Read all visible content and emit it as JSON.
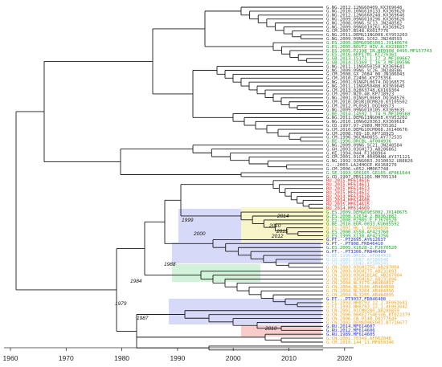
{
  "colors": {
    "black": "#3a3a3a",
    "green": "#14a51f",
    "red": "#e2231a",
    "blue": "#2430d6",
    "orange": "#f0a216",
    "lightblue": "#9fd2f0",
    "band_blue": "#c9ccf5",
    "band_green": "#cdf2d6",
    "band_yellow": "#fbf6c2",
    "band_red": "#f8c6c6"
  },
  "axis": {
    "ticks": [
      "1960",
      "1970",
      "1980",
      "1990",
      "2000",
      "2010",
      "2020"
    ]
  },
  "node_labels": [
    "1999",
    "2000",
    "2010",
    "2014",
    "2012",
    "2015",
    "1988",
    "1984",
    "1979",
    "1987",
    "2010"
  ],
  "tips": [
    {
      "text": "G.NG.2012.12NG60409.KX369648",
      "color": "black"
    },
    {
      "text": "G.NG.2010.10NG610133.KX369620",
      "color": "black"
    },
    {
      "text": "G.NG.2012.12NG660248.KX369646",
      "color": "black"
    },
    {
      "text": "G.NG.2009.09NG010296.KX369626",
      "color": "black"
    },
    {
      "text": "G.NG.2008.09NG.SC13.JN248582",
      "color": "black"
    },
    {
      "text": "G.NG.2009.09NG010261.KX369625",
      "color": "black"
    },
    {
      "text": "G.CM.2007.BS48.KX017776",
      "color": "black"
    },
    {
      "text": "G.NG.2011.DEMG11NG008.KY953203",
      "color": "black"
    },
    {
      "text": "G.NG.2009.09NG.SC62.JN248593",
      "color": "black"
    },
    {
      "text": "G.ES.2005.DEMG09ES001.JX140674",
      "color": "green"
    },
    {
      "text": "G.ES.2005.ROUT2_HIV.A.KX238837",
      "color": "green"
    },
    {
      "text": "G.ES.2005.P2198_IN.HE0908_0495.MF157743",
      "color": "green"
    },
    {
      "text": "G.ES.2016.ARP1701.KT276161",
      "color": "green"
    },
    {
      "text": "G.GB.2013.15171_1_17_3.MF109667",
      "color": "green"
    },
    {
      "text": "G.GB.2014.15169_1_16_3.MF109596",
      "color": "green"
    },
    {
      "text": "G.NG.2011.11NG050158.KX369641",
      "color": "black"
    },
    {
      "text": "G.NG.2009.09NG.SC26.JN248586",
      "color": "black"
    },
    {
      "text": "G.CM.2008.GX_2084_08.JN106043",
      "color": "black"
    },
    {
      "text": "G.CM.2010.Z2406.KY275356",
      "color": "black"
    },
    {
      "text": "G.NG.2001.01NGPL0674.DQ168575",
      "color": "black"
    },
    {
      "text": "G.NG.2011.11NG050488.KX369645",
      "color": "black"
    },
    {
      "text": "G.CM.2013.02863748.KX169304",
      "color": "black"
    },
    {
      "text": "G.CM.2007.NZ0.48.KP718923",
      "color": "black"
    },
    {
      "text": "G.NG.2001.01NGPL0669.DQ168576",
      "color": "black"
    },
    {
      "text": "G.CM.2010.DEUR10CM020.KY105502",
      "color": "black"
    },
    {
      "text": "G.CM.2012.PL0581.DQ168573",
      "color": "black"
    },
    {
      "text": "G.NG.2009.09NG010105.KX369635",
      "color": "black"
    },
    {
      "text": "G.BE.2014.14592_1_74_9.MF109568",
      "color": "green"
    },
    {
      "text": "G.NG.2011.DEMG11NG008.KY953202",
      "color": "black"
    },
    {
      "text": "G.NG.2010.10NG020363.KX369618",
      "color": "black"
    },
    {
      "text": "G.CD.1997.97-2989.MH705162",
      "color": "black"
    },
    {
      "text": "G.CM.2010.DEMG10CM008.JX140676",
      "color": "black"
    },
    {
      "text": "G.CM.2008.789-18.KP718925",
      "color": "black"
    },
    {
      "text": "G.CM.1996.96CMA085S.AY772535",
      "color": "black"
    },
    {
      "text": "G.BE.1996.DRCBL.AF084936",
      "color": "green"
    },
    {
      "text": "G.NG.2009.09NG.SC21.JN248584",
      "color": "black"
    },
    {
      "text": "G.GH.2003.03GH173.AB286862",
      "color": "black"
    },
    {
      "text": "G.KE.1994.044.FJ388964",
      "color": "black"
    },
    {
      "text": "G.CM.2001.01CM.4049HAN.AY371121",
      "color": "black"
    },
    {
      "text": "G.NG.1992.92NG083.JU10032.U88826",
      "color": "black"
    },
    {
      "text": "G.-.2003.LA24HOCE.KU168270",
      "color": "black"
    },
    {
      "text": "G.CM.2006.s052.HM067748",
      "color": "black"
    },
    {
      "text": "G.SE.1993.SE6165.G6165.AF061644",
      "color": "green"
    },
    {
      "text": "G.CD.1997.PBS1101.MH705134",
      "color": "black"
    },
    {
      "text": "RU.2015.MF614616",
      "color": "red"
    },
    {
      "text": "RU.2015.MF614611",
      "color": "red"
    },
    {
      "text": "RU.2015.MF614613",
      "color": "red"
    },
    {
      "text": "RU.2015.MF614612",
      "color": "red"
    },
    {
      "text": "RU.2014.MF614610",
      "color": "red"
    },
    {
      "text": "RU.2014.MF614608",
      "color": "red"
    },
    {
      "text": "RU.2015.MF614615",
      "color": "red"
    },
    {
      "text": "RU.2014.MF614609",
      "color": "red"
    },
    {
      "text": "G.ES.2009.DEMG09ES002.JX140675",
      "color": "green"
    },
    {
      "text": "G.ES.2008.X2634_2.BU362882",
      "color": "green"
    },
    {
      "text": "G.ES.2008.P2985.E.FJ670520",
      "color": "green"
    },
    {
      "text": "G.BE.2016.EUR-0033.KU685592",
      "color": "green"
    },
    {
      "text": "G.ES.2001.HG.1.AF084936",
      "color": "orange"
    },
    {
      "text": "G.ES.2000.X558.AF423760",
      "color": "green"
    },
    {
      "text": "G.ES.1999.X138.AF423756",
      "color": "green"
    },
    {
      "text": "G.PT.-.PT2695.AY612637",
      "color": "blue"
    },
    {
      "text": "G.PT.-.PT908.FR846410",
      "color": "blue"
    },
    {
      "text": "G.ES.2005.X1628-2.FJ670520",
      "color": "green"
    },
    {
      "text": "G.PT.-.PT3306.FR846409",
      "color": "blue"
    },
    {
      "text": "G.BE.1996.DRCBL.AF084936",
      "color": "lightblue"
    },
    {
      "text": "G.CU.2001.CU87.AY586546",
      "color": "lightblue"
    },
    {
      "text": "G.CU.2001.CU42.AY586545",
      "color": "lightblue"
    },
    {
      "text": "G.CN.2003.03GH175G.AB287004",
      "color": "orange"
    },
    {
      "text": "G.CN.2003.03GH175.AB231893",
      "color": "orange"
    },
    {
      "text": "G.CN.2003.03GH181AE.AB287004",
      "color": "orange"
    },
    {
      "text": "G.CN.2003.03GH182.AB231896",
      "color": "orange"
    },
    {
      "text": "G.CN.2004.NL3179.AB484897",
      "color": "orange"
    },
    {
      "text": "G.CN.2004.NL3180.AB484898",
      "color": "orange"
    },
    {
      "text": "G.CN.2004.NL3204.AB484896",
      "color": "orange"
    },
    {
      "text": "G.CN.2004.NL3205.AB484895",
      "color": "orange"
    },
    {
      "text": "G.PT.-.PT3037.FR846408",
      "color": "blue"
    },
    {
      "text": "G.FI.1993.HH8793_12_1.AF061641",
      "color": "orange"
    },
    {
      "text": "G.FI.1993.HH8793.12.1.AF061642",
      "color": "orange"
    },
    {
      "text": "G.CN.2001.01CM0280.AB286859",
      "color": "orange"
    },
    {
      "text": "G.CN.2006.06KE2754E5V6.BT022379",
      "color": "orange"
    },
    {
      "text": "G.CN.2006.CN.0148.DQ177649",
      "color": "orange"
    },
    {
      "text": "G.CN.2002.DEMG09KE001.BT716677",
      "color": "orange"
    },
    {
      "text": "G.RU.2014.MF614607",
      "color": "blue"
    },
    {
      "text": "G.RU.2012.MF614606",
      "color": "blue"
    },
    {
      "text": "G.RU.1989.MF614605",
      "color": "blue"
    },
    {
      "text": "G.CN.2001.76349.AF062048",
      "color": "orange"
    },
    {
      "text": "G.CM.2010.144_11.MF050346",
      "color": "orange"
    }
  ]
}
